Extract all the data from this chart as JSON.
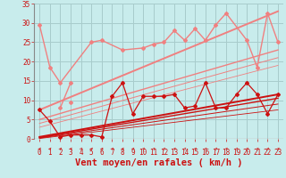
{
  "background_color": "#c8ecec",
  "grid_color": "#a8cccc",
  "xlabel": "Vent moyen/en rafales ( km/h )",
  "xlim": [
    -0.5,
    23.5
  ],
  "ylim": [
    0,
    35
  ],
  "yticks": [
    0,
    5,
    10,
    15,
    20,
    25,
    30,
    35
  ],
  "xticks": [
    0,
    1,
    2,
    3,
    4,
    5,
    6,
    7,
    8,
    9,
    10,
    11,
    12,
    13,
    14,
    15,
    16,
    17,
    18,
    19,
    20,
    21,
    22,
    23
  ],
  "series": [
    {
      "name": "rafales_pink_main",
      "x": [
        0,
        1,
        2,
        5,
        6,
        8,
        10,
        11,
        12,
        13,
        14,
        15,
        16,
        17,
        18,
        20,
        21,
        22,
        23
      ],
      "y": [
        29.5,
        18.5,
        14.5,
        25.0,
        25.5,
        23.0,
        23.5,
        24.5,
        25.0,
        28.0,
        25.5,
        28.5,
        25.5,
        29.5,
        32.5,
        25.5,
        18.5,
        32.5,
        25.0
      ],
      "color": "#f08080",
      "lw": 1.0,
      "marker": "D",
      "ms": 2.0,
      "connect": true
    },
    {
      "name": "pink_segment_2_3",
      "x": [
        2,
        3
      ],
      "y": [
        8.0,
        14.5
      ],
      "color": "#f08080",
      "lw": 1.0,
      "marker": "D",
      "ms": 2.0,
      "connect": true
    },
    {
      "name": "pink_segment_3",
      "x": [
        3
      ],
      "y": [
        9.5
      ],
      "color": "#f08080",
      "lw": 1.0,
      "marker": "D",
      "ms": 2.0,
      "connect": true
    },
    {
      "name": "red_noisy",
      "x": [
        0,
        1,
        2,
        3,
        4,
        5,
        6,
        7,
        8,
        9,
        10,
        11,
        12,
        13,
        14,
        15,
        16,
        17,
        18,
        19,
        20,
        21,
        22,
        23
      ],
      "y": [
        7.5,
        4.5,
        0.5,
        1.0,
        1.0,
        1.0,
        0.5,
        11.0,
        14.5,
        6.5,
        11.0,
        11.0,
        11.0,
        11.5,
        8.0,
        8.5,
        14.5,
        8.0,
        8.0,
        11.5,
        14.5,
        11.5,
        6.5,
        11.5
      ],
      "color": "#cc1111",
      "lw": 0.9,
      "marker": "D",
      "ms": 2.0,
      "connect": true
    },
    {
      "name": "red_line1",
      "x": [
        0,
        23
      ],
      "y": [
        0.5,
        11.5
      ],
      "color": "#cc1111",
      "lw": 1.4,
      "marker": null,
      "ms": 0,
      "connect": true
    },
    {
      "name": "red_line2",
      "x": [
        0,
        23
      ],
      "y": [
        0.3,
        10.5
      ],
      "color": "#cc1111",
      "lw": 1.0,
      "marker": null,
      "ms": 0,
      "connect": true
    },
    {
      "name": "red_line3",
      "x": [
        0,
        23
      ],
      "y": [
        0.2,
        9.0
      ],
      "color": "#cc1111",
      "lw": 0.7,
      "marker": null,
      "ms": 0,
      "connect": true
    },
    {
      "name": "red_line4",
      "x": [
        0,
        23
      ],
      "y": [
        0.1,
        7.5
      ],
      "color": "#cc1111",
      "lw": 0.6,
      "marker": null,
      "ms": 0,
      "connect": true
    },
    {
      "name": "pink_trendline1",
      "x": [
        0,
        23
      ],
      "y": [
        7.5,
        33.0
      ],
      "color": "#f08080",
      "lw": 1.4,
      "marker": null,
      "ms": 0,
      "connect": true
    },
    {
      "name": "pink_trendline2",
      "x": [
        0,
        23
      ],
      "y": [
        5.0,
        23.0
      ],
      "color": "#f08080",
      "lw": 1.0,
      "marker": null,
      "ms": 0,
      "connect": true
    },
    {
      "name": "pink_trendline3",
      "x": [
        0,
        23
      ],
      "y": [
        4.0,
        21.0
      ],
      "color": "#f08080",
      "lw": 0.7,
      "marker": null,
      "ms": 0,
      "connect": true
    },
    {
      "name": "pink_trendline4",
      "x": [
        0,
        23
      ],
      "y": [
        3.0,
        19.0
      ],
      "color": "#f08080",
      "lw": 0.6,
      "marker": null,
      "ms": 0,
      "connect": true
    }
  ],
  "arrow_color": "#cc2222",
  "xlabel_color": "#cc1111",
  "xlabel_fontsize": 7.5,
  "tick_color": "#cc1111",
  "tick_fontsize": 5.5,
  "spine_color": "#888888"
}
